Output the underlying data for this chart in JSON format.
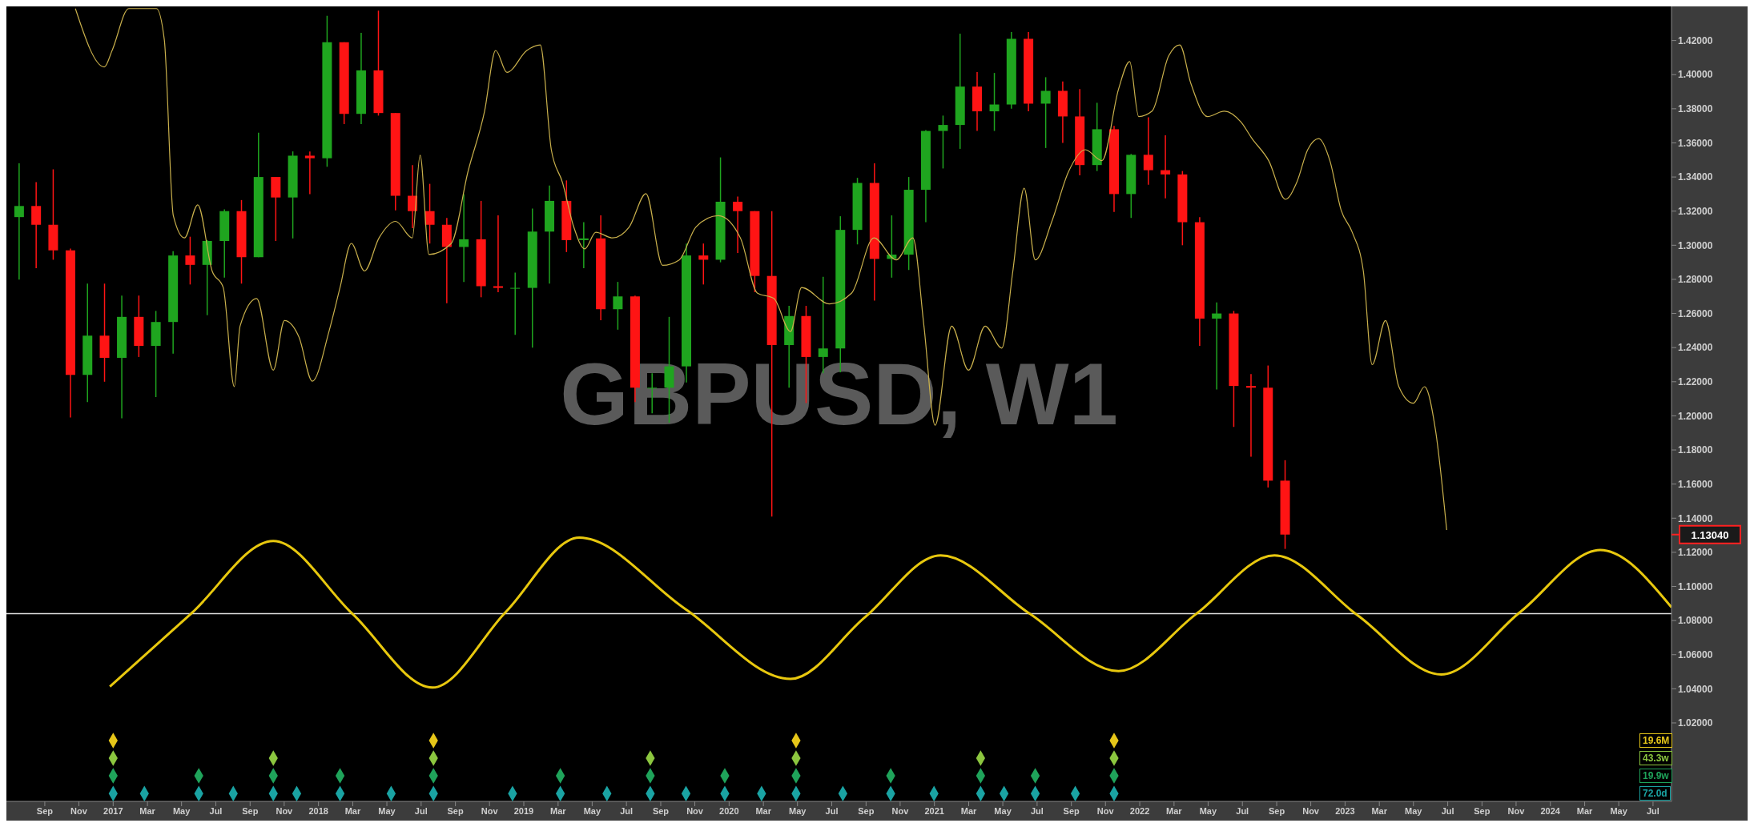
{
  "chart_data": {
    "type": "candlestick",
    "title": "GBPUSD, W1",
    "x": [
      2016.542,
      2016.625,
      2016.708,
      2016.792,
      2016.875,
      2016.958,
      2017.042,
      2017.125,
      2017.208,
      2017.292,
      2017.375,
      2017.458,
      2017.542,
      2017.625,
      2017.708,
      2017.792,
      2017.875,
      2017.958,
      2018.042,
      2018.125,
      2018.208,
      2018.292,
      2018.375,
      2018.458,
      2018.542,
      2018.625,
      2018.708,
      2018.792,
      2018.875,
      2018.958,
      2019.042,
      2019.125,
      2019.208,
      2019.292,
      2019.375,
      2019.458,
      2019.542,
      2019.625,
      2019.708,
      2019.792,
      2019.875,
      2019.958,
      2020.042,
      2020.125,
      2020.208,
      2020.292,
      2020.375,
      2020.458,
      2020.542,
      2020.625,
      2020.708,
      2020.792,
      2020.875,
      2020.958,
      2021.042,
      2021.125,
      2021.208,
      2021.292,
      2021.375,
      2021.458,
      2021.542,
      2021.625,
      2021.708,
      2021.792,
      2021.875,
      2021.958,
      2022.042,
      2022.125,
      2022.208,
      2022.292,
      2022.375,
      2022.458,
      2022.542,
      2022.625,
      2022.708
    ],
    "ohlc": [
      [
        1.3165,
        1.348,
        1.2798,
        1.323
      ],
      [
        1.323,
        1.337,
        1.2865,
        1.312
      ],
      [
        1.312,
        1.3445,
        1.2915,
        1.297
      ],
      [
        1.297,
        1.298,
        1.199,
        1.224
      ],
      [
        1.224,
        1.2775,
        1.208,
        1.247
      ],
      [
        1.247,
        1.2775,
        1.22,
        1.234
      ],
      [
        1.234,
        1.2705,
        1.1985,
        1.258
      ],
      [
        1.258,
        1.2705,
        1.2345,
        1.241
      ],
      [
        1.241,
        1.2615,
        1.211,
        1.255
      ],
      [
        1.255,
        1.2965,
        1.2365,
        1.294
      ],
      [
        1.294,
        1.305,
        1.277,
        1.2885
      ],
      [
        1.2885,
        1.303,
        1.259,
        1.3025
      ],
      [
        1.3025,
        1.321,
        1.281,
        1.32
      ],
      [
        1.32,
        1.3265,
        1.2775,
        1.293
      ],
      [
        1.293,
        1.366,
        1.293,
        1.34
      ],
      [
        1.34,
        1.34,
        1.3025,
        1.328
      ],
      [
        1.328,
        1.355,
        1.304,
        1.3525
      ],
      [
        1.3525,
        1.355,
        1.33,
        1.351
      ],
      [
        1.351,
        1.4345,
        1.346,
        1.419
      ],
      [
        1.419,
        1.419,
        1.371,
        1.377
      ],
      [
        1.377,
        1.4245,
        1.371,
        1.4025
      ],
      [
        1.4025,
        1.4375,
        1.376,
        1.3775
      ],
      [
        1.3775,
        1.3775,
        1.3205,
        1.329
      ],
      [
        1.329,
        1.347,
        1.31,
        1.32
      ],
      [
        1.32,
        1.336,
        1.301,
        1.312
      ],
      [
        1.312,
        1.316,
        1.266,
        1.299
      ],
      [
        1.299,
        1.33,
        1.2785,
        1.3035
      ],
      [
        1.3035,
        1.326,
        1.2695,
        1.276
      ],
      [
        1.276,
        1.3175,
        1.2725,
        1.275
      ],
      [
        1.275,
        1.284,
        1.2475,
        1.275
      ],
      [
        1.275,
        1.3215,
        1.24,
        1.308
      ],
      [
        1.308,
        1.335,
        1.2775,
        1.326
      ],
      [
        1.326,
        1.338,
        1.296,
        1.303
      ],
      [
        1.303,
        1.3135,
        1.2865,
        1.304
      ],
      [
        1.304,
        1.3175,
        1.256,
        1.2625
      ],
      [
        1.2625,
        1.2785,
        1.2505,
        1.27
      ],
      [
        1.27,
        1.2705,
        1.208,
        1.2165
      ],
      [
        1.2165,
        1.225,
        1.2015,
        1.2165
      ],
      [
        1.2165,
        1.258,
        1.196,
        1.229
      ],
      [
        1.229,
        1.301,
        1.2195,
        1.294
      ],
      [
        1.294,
        1.301,
        1.277,
        1.2915
      ],
      [
        1.2915,
        1.3515,
        1.29,
        1.3255
      ],
      [
        1.3255,
        1.3285,
        1.2955,
        1.32
      ],
      [
        1.32,
        1.32,
        1.2725,
        1.282
      ],
      [
        1.282,
        1.32,
        1.141,
        1.2415
      ],
      [
        1.2415,
        1.2645,
        1.2165,
        1.2585
      ],
      [
        1.2585,
        1.2645,
        1.2075,
        1.2345
      ],
      [
        1.2345,
        1.2815,
        1.225,
        1.2395
      ],
      [
        1.2395,
        1.317,
        1.2255,
        1.309
      ],
      [
        1.309,
        1.3395,
        1.3005,
        1.3365
      ],
      [
        1.3365,
        1.348,
        1.2675,
        1.292
      ],
      [
        1.292,
        1.3175,
        1.281,
        1.2945
      ],
      [
        1.2945,
        1.34,
        1.2855,
        1.3325
      ],
      [
        1.3325,
        1.3675,
        1.3135,
        1.367
      ],
      [
        1.367,
        1.376,
        1.345,
        1.3705
      ],
      [
        1.3705,
        1.424,
        1.3565,
        1.393
      ],
      [
        1.393,
        1.4015,
        1.367,
        1.3785
      ],
      [
        1.3785,
        1.401,
        1.367,
        1.3825
      ],
      [
        1.3825,
        1.425,
        1.38,
        1.421
      ],
      [
        1.421,
        1.425,
        1.3785,
        1.383
      ],
      [
        1.383,
        1.3985,
        1.357,
        1.3905
      ],
      [
        1.3905,
        1.396,
        1.36,
        1.3755
      ],
      [
        1.3755,
        1.3915,
        1.341,
        1.347
      ],
      [
        1.347,
        1.3835,
        1.3435,
        1.368
      ],
      [
        1.368,
        1.37,
        1.3195,
        1.33
      ],
      [
        1.33,
        1.3535,
        1.316,
        1.353
      ],
      [
        1.353,
        1.375,
        1.3355,
        1.344
      ],
      [
        1.344,
        1.3645,
        1.3275,
        1.3415
      ],
      [
        1.3415,
        1.3435,
        1.3,
        1.3135
      ],
      [
        1.3135,
        1.3165,
        1.241,
        1.257
      ],
      [
        1.257,
        1.2665,
        1.2155,
        1.26
      ],
      [
        1.26,
        1.2615,
        1.1935,
        1.2175
      ],
      [
        1.2175,
        1.2245,
        1.176,
        1.2165
      ],
      [
        1.2165,
        1.2295,
        1.158,
        1.162
      ],
      [
        1.162,
        1.174,
        1.122,
        1.1304
      ]
    ],
    "series": [
      {
        "type": "line",
        "color": "#c9b04c",
        "marker": "none",
        "x": [
          2016.816,
          2016.957,
          2016.995,
          2017.076,
          2017.211,
          2017.249,
          2017.293,
          2017.347,
          2017.412,
          2017.482,
          2017.536,
          2017.59,
          2017.618,
          2017.699,
          2017.78,
          2017.834,
          2017.905,
          2017.97,
          2018.051,
          2018.105,
          2018.16,
          2018.224,
          2018.295,
          2018.376,
          2018.457,
          2018.495,
          2018.538,
          2018.647,
          2018.728,
          2018.809,
          2018.863,
          2018.918,
          2019.015,
          2019.08,
          2019.134,
          2019.189,
          2019.243,
          2019.297,
          2019.351,
          2019.432,
          2019.514,
          2019.595,
          2019.676,
          2019.757,
          2019.839,
          2019.947,
          2020.055,
          2020.137,
          2020.218,
          2020.299,
          2020.353,
          2020.489,
          2020.597,
          2020.705,
          2020.814,
          2020.895,
          2020.949,
          2021.003,
          2021.084,
          2021.166,
          2021.247,
          2021.328,
          2021.382,
          2021.437,
          2021.491,
          2021.572,
          2021.653,
          2021.735,
          2021.816,
          2021.897,
          2021.951,
          2021.995,
          2022.06,
          2022.141,
          2022.195,
          2022.249,
          2022.33,
          2022.412,
          2022.493,
          2022.547,
          2022.628,
          2022.71,
          2022.764,
          2022.818,
          2022.872,
          2022.926,
          2022.981,
          2023.035,
          2023.089,
          2023.132,
          2023.197,
          2023.262,
          2023.333,
          2023.387,
          2023.441,
          2023.495
        ],
        "values": [
          1.4387,
          1.4045,
          1.4142,
          1.4387,
          1.4387,
          1.4206,
          1.3173,
          1.3043,
          1.3237,
          1.2849,
          1.2752,
          1.2171,
          1.2526,
          1.2688,
          1.2268,
          1.2559,
          1.2462,
          1.2203,
          1.2494,
          1.2752,
          1.3011,
          1.2849,
          1.3043,
          1.314,
          1.3043,
          1.3528,
          1.2946,
          1.3011,
          1.3431,
          1.3786,
          1.4142,
          1.4013,
          1.4142,
          1.4174,
          1.356,
          1.3366,
          1.3108,
          1.2979,
          1.3076,
          1.3043,
          1.3108,
          1.3302,
          1.2882,
          1.2914,
          1.3108,
          1.3173,
          1.3043,
          1.272,
          1.2688,
          1.2494,
          1.2752,
          1.2656,
          1.272,
          1.3043,
          1.2914,
          1.3043,
          1.2526,
          1.1945,
          1.2526,
          1.2268,
          1.2526,
          1.2397,
          1.2849,
          1.3334,
          1.2914,
          1.314,
          1.3431,
          1.356,
          1.3496,
          1.3916,
          1.4077,
          1.3754,
          1.3786,
          1.411,
          1.4174,
          1.3948,
          1.3754,
          1.3786,
          1.3722,
          1.3625,
          1.3496,
          1.3269,
          1.3366,
          1.356,
          1.3625,
          1.3496,
          1.3205,
          1.3076,
          1.2849,
          1.23,
          1.2559,
          1.2171,
          1.2074,
          1.2171,
          1.1912,
          1.1331
        ]
      },
      {
        "type": "line",
        "color": "#e8c80e",
        "marker": "none",
        "x": [
          2016.984,
          2017.379,
          2017.78,
          2018.165,
          2018.555,
          2018.912,
          2019.27,
          2019.784,
          2020.299,
          2020.662,
          2021.03,
          2021.464,
          2021.897,
          2022.276,
          2022.656,
          2023.062,
          2023.468,
          2023.853,
          2024.243,
          2024.59
        ],
        "values": [
          1.0413,
          1.084,
          1.1266,
          1.084,
          1.0407,
          1.085,
          1.1286,
          1.087,
          1.0458,
          1.082,
          1.1182,
          1.084,
          1.0504,
          1.084,
          1.1182,
          1.083,
          1.0484,
          1.085,
          1.1214,
          1.0878
        ]
      },
      {
        "type": "scatter",
        "color": "#e6c619",
        "marker": "diamond",
        "x": [
          2017.0,
          2018.56,
          2020.326,
          2021.875
        ],
        "values": [
          1.0097,
          1.0097,
          1.0097,
          1.0097
        ]
      },
      {
        "type": "scatter",
        "color": "#8cc63f",
        "marker": "diamond",
        "x": [
          2017.0,
          2017.78,
          2018.56,
          2019.616,
          2020.326,
          2021.225,
          2021.875
        ],
        "values": [
          0.9993,
          0.9993,
          0.9993,
          0.9993,
          0.9993,
          0.9993,
          0.9993
        ]
      },
      {
        "type": "scatter",
        "color": "#1fa35a",
        "marker": "diamond",
        "x": [
          2017.0,
          2017.417,
          2017.78,
          2018.105,
          2018.56,
          2019.178,
          2019.616,
          2019.979,
          2020.326,
          2020.787,
          2021.225,
          2021.491,
          2021.875
        ],
        "values": [
          0.989,
          0.989,
          0.989,
          0.989,
          0.989,
          0.989,
          0.989,
          0.989,
          0.989,
          0.989,
          0.989,
          0.989,
          0.989
        ]
      },
      {
        "type": "scatter",
        "color": "#1aa3a3",
        "marker": "diamond",
        "x": [
          2017.0,
          2017.152,
          2017.417,
          2017.585,
          2017.78,
          2017.894,
          2018.105,
          2018.354,
          2018.56,
          2018.945,
          2019.178,
          2019.405,
          2019.616,
          2019.79,
          2019.979,
          2020.158,
          2020.326,
          2020.554,
          2020.787,
          2020.998,
          2021.225,
          2021.339,
          2021.491,
          2021.686,
          2021.875
        ],
        "values": [
          0.9786,
          0.9786,
          0.9786,
          0.9786,
          0.9786,
          0.9786,
          0.9786,
          0.9786,
          0.9786,
          0.9786,
          0.9786,
          0.9786,
          0.9786,
          0.9786,
          0.9786,
          0.9786,
          0.9786,
          0.9786,
          0.9786,
          0.9786,
          0.9786,
          0.9786,
          0.9786,
          0.9786,
          0.9786
        ]
      }
    ],
    "ref_lines": [
      {
        "axis": "y",
        "value": 1.084,
        "color": "#e0e0e0"
      }
    ],
    "annotations": [
      "19.6M",
      "43.3w",
      "19.9w",
      "72.0d",
      "1.13040"
    ],
    "xlim": [
      2016.48,
      2024.59
    ],
    "xticks": [
      {
        "value": 2016.667,
        "label": "Sep"
      },
      {
        "value": 2016.833,
        "label": "Nov"
      },
      {
        "value": 2017,
        "label": "2017"
      },
      {
        "value": 2017.167,
        "label": "Mar"
      },
      {
        "value": 2017.333,
        "label": "May"
      },
      {
        "value": 2017.5,
        "label": "Jul"
      },
      {
        "value": 2017.667,
        "label": "Sep"
      },
      {
        "value": 2017.833,
        "label": "Nov"
      },
      {
        "value": 2018,
        "label": "2018"
      },
      {
        "value": 2018.167,
        "label": "Mar"
      },
      {
        "value": 2018.333,
        "label": "May"
      },
      {
        "value": 2018.5,
        "label": "Jul"
      },
      {
        "value": 2018.667,
        "label": "Sep"
      },
      {
        "value": 2018.833,
        "label": "Nov"
      },
      {
        "value": 2019,
        "label": "2019"
      },
      {
        "value": 2019.167,
        "label": "Mar"
      },
      {
        "value": 2019.333,
        "label": "May"
      },
      {
        "value": 2019.5,
        "label": "Jul"
      },
      {
        "value": 2019.667,
        "label": "Sep"
      },
      {
        "value": 2019.833,
        "label": "Nov"
      },
      {
        "value": 2020,
        "label": "2020"
      },
      {
        "value": 2020.167,
        "label": "Mar"
      },
      {
        "value": 2020.333,
        "label": "May"
      },
      {
        "value": 2020.5,
        "label": "Jul"
      },
      {
        "value": 2020.667,
        "label": "Sep"
      },
      {
        "value": 2020.833,
        "label": "Nov"
      },
      {
        "value": 2021,
        "label": "2021"
      },
      {
        "value": 2021.167,
        "label": "Mar"
      },
      {
        "value": 2021.333,
        "label": "May"
      },
      {
        "value": 2021.5,
        "label": "Jul"
      },
      {
        "value": 2021.667,
        "label": "Sep"
      },
      {
        "value": 2021.833,
        "label": "Nov"
      },
      {
        "value": 2022,
        "label": "2022"
      },
      {
        "value": 2022.167,
        "label": "Mar"
      },
      {
        "value": 2022.333,
        "label": "May"
      },
      {
        "value": 2022.5,
        "label": "Jul"
      },
      {
        "value": 2022.667,
        "label": "Sep"
      },
      {
        "value": 2022.833,
        "label": "Nov"
      },
      {
        "value": 2023,
        "label": "2023"
      },
      {
        "value": 2023.167,
        "label": "Mar"
      },
      {
        "value": 2023.333,
        "label": "May"
      },
      {
        "value": 2023.5,
        "label": "Jul"
      },
      {
        "value": 2023.667,
        "label": "Sep"
      },
      {
        "value": 2023.833,
        "label": "Nov"
      },
      {
        "value": 2024,
        "label": "2024"
      },
      {
        "value": 2024.167,
        "label": "Mar"
      },
      {
        "value": 2024.333,
        "label": "May"
      },
      {
        "value": 2024.5,
        "label": "Jul"
      }
    ],
    "ylim": [
      0.974,
      1.44
    ],
    "yticks": [
      {
        "value": 1.02,
        "label": "1.02000"
      },
      {
        "value": 1.04,
        "label": "1.04000"
      },
      {
        "value": 1.06,
        "label": "1.06000"
      },
      {
        "value": 1.08,
        "label": "1.08000"
      },
      {
        "value": 1.1,
        "label": "1.10000"
      },
      {
        "value": 1.12,
        "label": "1.12000"
      },
      {
        "value": 1.14,
        "label": "1.14000"
      },
      {
        "value": 1.16,
        "label": "1.16000"
      },
      {
        "value": 1.18,
        "label": "1.18000"
      },
      {
        "value": 1.2,
        "label": "1.20000"
      },
      {
        "value": 1.22,
        "label": "1.22000"
      },
      {
        "value": 1.24,
        "label": "1.24000"
      },
      {
        "value": 1.26,
        "label": "1.26000"
      },
      {
        "value": 1.28,
        "label": "1.28000"
      },
      {
        "value": 1.3,
        "label": "1.30000"
      },
      {
        "value": 1.32,
        "label": "1.32000"
      },
      {
        "value": 1.34,
        "label": "1.34000"
      },
      {
        "value": 1.36,
        "label": "1.36000"
      },
      {
        "value": 1.38,
        "label": "1.38000"
      },
      {
        "value": 1.4,
        "label": "1.40000"
      },
      {
        "value": 1.42,
        "label": "1.42000"
      }
    ]
  }
}
